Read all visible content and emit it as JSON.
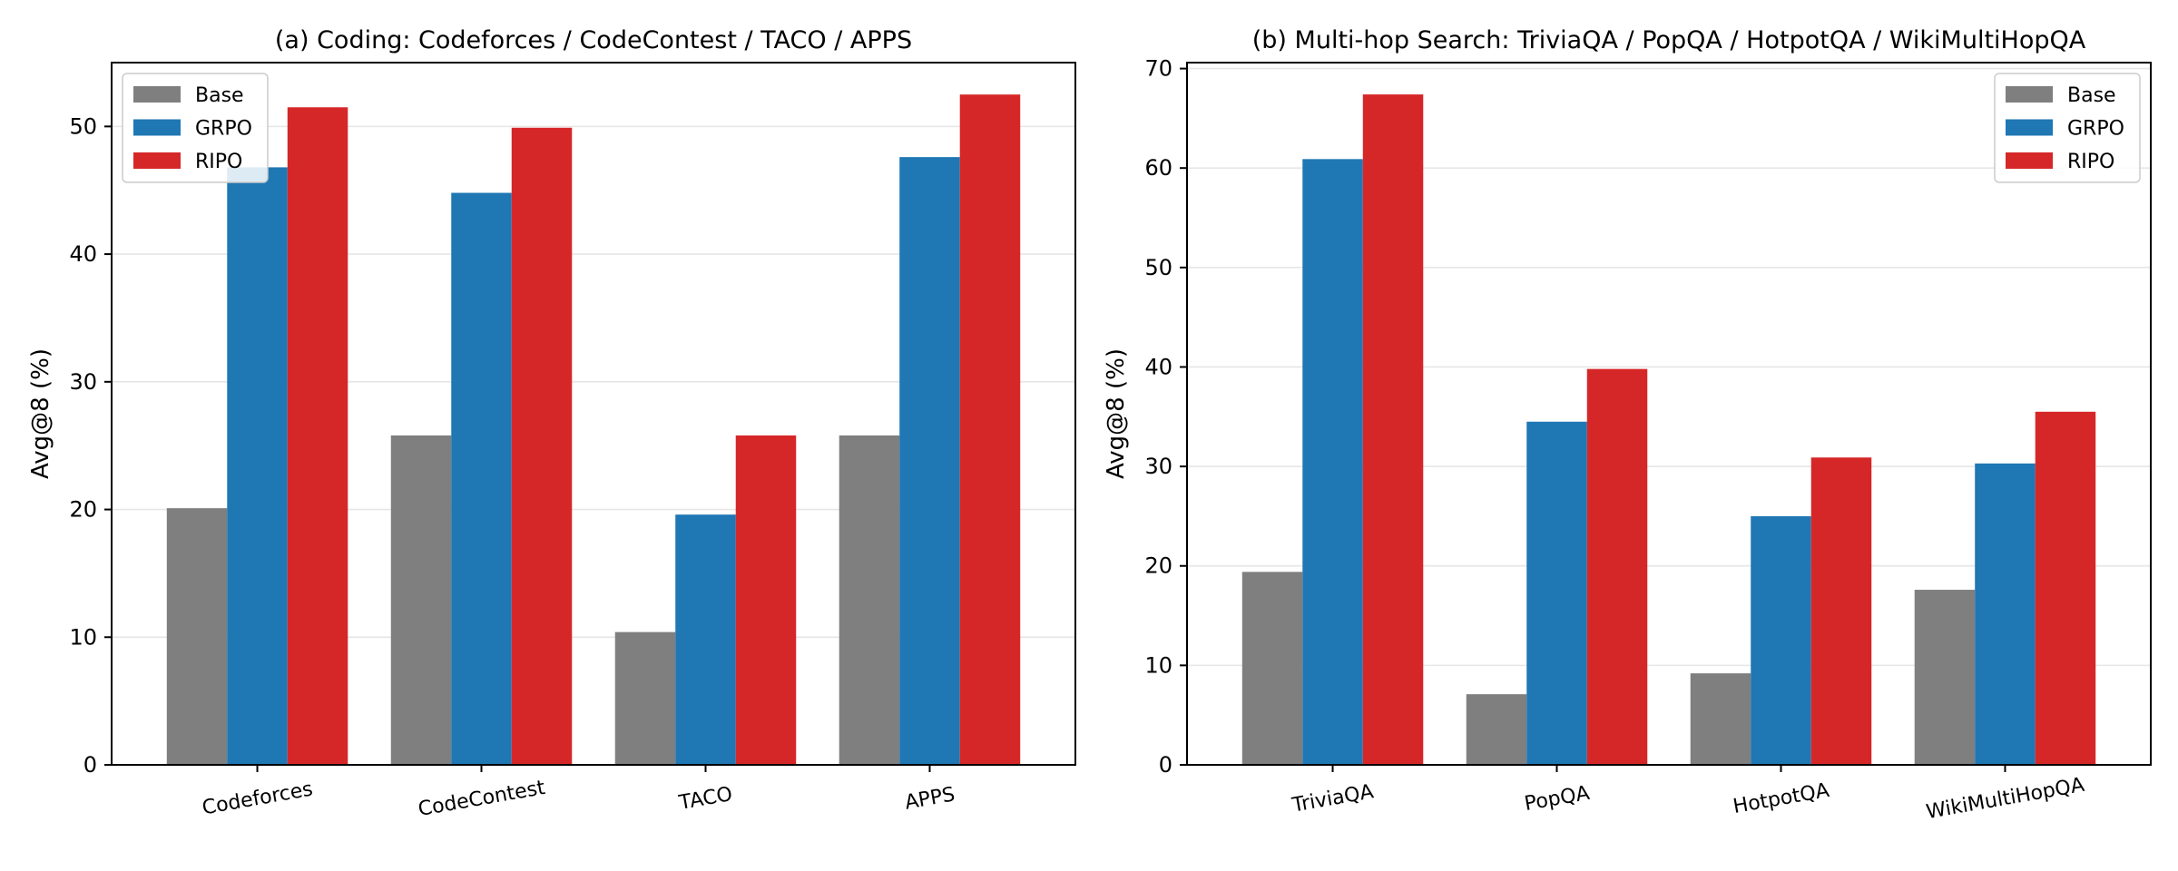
{
  "chart_data": [
    {
      "type": "bar",
      "title": "(a) Coding: Codeforces / CodeContest / TACO / APPS",
      "xlabel": "",
      "ylabel": "Avg@8 (%)",
      "ylim": [
        0,
        55
      ],
      "yticks": [
        0,
        10,
        20,
        30,
        40,
        50
      ],
      "grid": "y",
      "legend_position": "top-left",
      "categories": [
        "Codeforces",
        "CodeContest",
        "TACO",
        "APPS"
      ],
      "series": [
        {
          "name": "Base",
          "color": "#7f7f7f",
          "values": [
            20.1,
            25.8,
            10.4,
            25.8
          ]
        },
        {
          "name": "GRPO",
          "color": "#1f77b4",
          "values": [
            46.8,
            44.8,
            19.6,
            47.6
          ]
        },
        {
          "name": "RIPO",
          "color": "#d62728",
          "values": [
            51.5,
            49.9,
            25.8,
            52.5
          ]
        }
      ]
    },
    {
      "type": "bar",
      "title": "(b) Multi-hop Search: TriviaQA / PopQA / HotpotQA / WikiMultiHopQA",
      "xlabel": "",
      "ylabel": "Avg@8 (%)",
      "ylim": [
        0,
        70.6
      ],
      "yticks": [
        0,
        10,
        20,
        30,
        40,
        50,
        60,
        70
      ],
      "grid": "y",
      "legend_position": "top-right",
      "categories": [
        "TriviaQA",
        "PopQA",
        "HotpotQA",
        "WikiMultiHopQA"
      ],
      "series": [
        {
          "name": "Base",
          "color": "#7f7f7f",
          "values": [
            19.4,
            7.1,
            9.2,
            17.6
          ]
        },
        {
          "name": "GRPO",
          "color": "#1f77b4",
          "values": [
            60.9,
            34.5,
            25.0,
            30.3
          ]
        },
        {
          "name": "RIPO",
          "color": "#d62728",
          "values": [
            67.4,
            39.8,
            30.9,
            35.5
          ]
        }
      ]
    }
  ]
}
